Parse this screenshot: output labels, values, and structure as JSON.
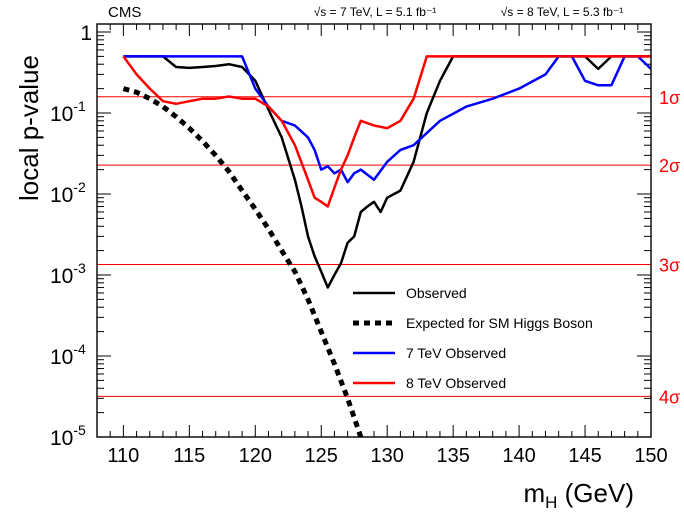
{
  "chart_data": {
    "type": "line",
    "header": {
      "experiment": "CMS",
      "lumi_7": "√s = 7 TeV, L = 5.1 fb⁻¹",
      "lumi_8": "√s = 8 TeV, L = 5.3 fb⁻¹"
    },
    "xlabel": "m",
    "xlabel_sub": "H",
    "xlabel_unit": " (GeV)",
    "ylabel": "local p-value",
    "xlim": [
      108,
      150
    ],
    "ylim": [
      1e-05,
      1
    ],
    "y_scale": "log",
    "x_ticks": [
      110,
      115,
      120,
      125,
      130,
      135,
      140,
      145,
      150
    ],
    "y_ticks": [
      {
        "value": 1,
        "base": "1",
        "exp": ""
      },
      {
        "value": 0.1,
        "base": "10",
        "exp": "-1"
      },
      {
        "value": 0.01,
        "base": "10",
        "exp": "-2"
      },
      {
        "value": 0.001,
        "base": "10",
        "exp": "-3"
      },
      {
        "value": 0.0001,
        "base": "10",
        "exp": "-4"
      },
      {
        "value": 1e-05,
        "base": "10",
        "exp": "-5"
      }
    ],
    "sigma_lines": [
      {
        "label": "1σ",
        "value": 0.1587
      },
      {
        "label": "2σ",
        "value": 0.02275
      },
      {
        "label": "3σ",
        "value": 0.00135
      },
      {
        "label": "4σ",
        "value": 3.17e-05
      }
    ],
    "legend_position": "bottom-right",
    "colors": {
      "sigma": "#ff0000",
      "observed": "#000000",
      "expected": "#000000",
      "tev7": "#0000ff",
      "tev8": "#ff0000"
    },
    "series": [
      {
        "name": "Observed",
        "color": "#000000",
        "dash": "solid",
        "x": [
          110,
          113,
          114,
          115,
          116,
          117,
          118,
          119,
          120,
          121,
          122,
          123,
          123.5,
          124,
          124.5,
          125,
          125.5,
          126,
          126.5,
          127,
          127.5,
          128,
          128.5,
          129,
          129.5,
          130,
          131,
          132,
          133,
          134,
          135,
          140,
          145,
          146,
          147,
          148,
          149,
          150
        ],
        "y": [
          0.5,
          0.5,
          0.37,
          0.36,
          0.37,
          0.38,
          0.4,
          0.37,
          0.25,
          0.11,
          0.05,
          0.015,
          0.007,
          0.003,
          0.0017,
          0.0011,
          0.0007,
          0.001,
          0.0014,
          0.0025,
          0.003,
          0.006,
          0.007,
          0.008,
          0.006,
          0.009,
          0.011,
          0.025,
          0.1,
          0.25,
          0.5,
          0.5,
          0.5,
          0.35,
          0.5,
          0.5,
          0.5,
          0.5
        ]
      },
      {
        "name": "Expected for SM Higgs Boson",
        "color": "#000000",
        "dash": "dotted",
        "x": [
          110,
          111,
          112,
          113,
          114,
          115,
          116,
          117,
          118,
          119,
          120,
          121,
          122,
          123,
          124,
          125,
          126,
          127,
          128
        ],
        "y": [
          0.2,
          0.18,
          0.15,
          0.12,
          0.09,
          0.065,
          0.045,
          0.03,
          0.019,
          0.011,
          0.0065,
          0.0037,
          0.002,
          0.0011,
          0.0005,
          0.0002,
          8e-05,
          3e-05,
          1e-05
        ]
      },
      {
        "name": "7 TeV Observed",
        "color": "#0000ff",
        "dash": "solid",
        "x": [
          110,
          119,
          120,
          121,
          122,
          123,
          124,
          124.5,
          125,
          125.5,
          126,
          126.5,
          127,
          127.5,
          128,
          129,
          130,
          131,
          132,
          134,
          136,
          138,
          140,
          142,
          143,
          144,
          145,
          146,
          147,
          148,
          149,
          150
        ],
        "y": [
          0.5,
          0.5,
          0.2,
          0.12,
          0.08,
          0.07,
          0.05,
          0.035,
          0.02,
          0.022,
          0.018,
          0.02,
          0.014,
          0.018,
          0.02,
          0.015,
          0.025,
          0.035,
          0.04,
          0.08,
          0.12,
          0.15,
          0.2,
          0.3,
          0.5,
          0.5,
          0.25,
          0.22,
          0.22,
          0.5,
          0.5,
          0.35
        ]
      },
      {
        "name": "8 TeV Observed",
        "color": "#ff0000",
        "dash": "solid",
        "x": [
          110,
          111,
          112,
          113,
          114,
          115,
          116,
          117,
          118,
          119,
          120,
          121,
          122,
          123,
          124,
          124.5,
          125,
          125.5,
          126,
          126.5,
          127,
          127.5,
          128,
          129,
          130,
          131,
          132,
          133,
          134,
          135,
          136,
          140,
          145,
          150
        ],
        "y": [
          0.5,
          0.3,
          0.2,
          0.14,
          0.13,
          0.14,
          0.15,
          0.15,
          0.16,
          0.15,
          0.15,
          0.12,
          0.08,
          0.04,
          0.015,
          0.009,
          0.008,
          0.007,
          0.012,
          0.02,
          0.03,
          0.05,
          0.08,
          0.07,
          0.065,
          0.08,
          0.15,
          0.5,
          0.5,
          0.5,
          0.5,
          0.5,
          0.5,
          0.5
        ]
      }
    ]
  }
}
